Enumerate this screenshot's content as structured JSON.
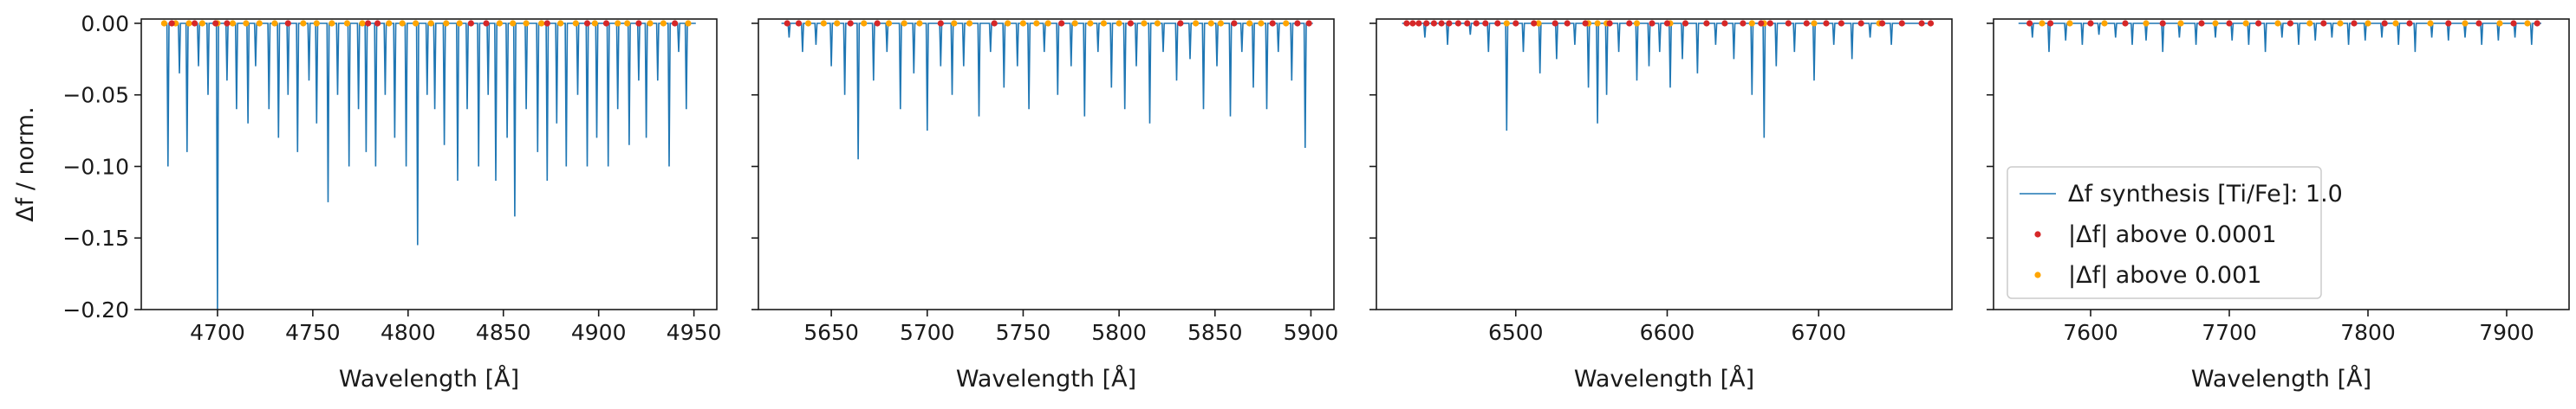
{
  "figure": {
    "ylabel": "Δf / norm.",
    "xlabel": "Wavelength [Å]",
    "ylim": [
      -0.2,
      0.003
    ],
    "yticks": [
      0.0,
      -0.05,
      -0.1,
      -0.15,
      -0.2
    ],
    "ytick_labels": [
      "0.00",
      "−0.05",
      "−0.10",
      "−0.15",
      "−0.20"
    ],
    "colors": {
      "synthesis": "#1f77b4",
      "above_1e-4": "#d62728",
      "above_1e-3": "#ffa500",
      "axes": "#1a1a1a"
    }
  },
  "legend": {
    "placement": "lower-left of fourth panel",
    "entries": [
      {
        "label": "Δf synthesis [Ti/Fe]: 1.0",
        "marker": "line",
        "color": "#1f77b4"
      },
      {
        "label": "|Δf| above 0.0001",
        "marker": "dot",
        "color": "#d62728"
      },
      {
        "label": "|Δf| above 0.001",
        "marker": "dot",
        "color": "#ffa500"
      }
    ]
  },
  "chart_data": [
    {
      "type": "line",
      "xlabel": "Wavelength [Å]",
      "ylabel": "Δf / norm.",
      "xlim": [
        4660,
        4962
      ],
      "ylim": [
        -0.2,
        0.003
      ],
      "xticks": [
        4700,
        4750,
        4800,
        4850,
        4900,
        4950
      ],
      "series": [
        {
          "name": "Δf synthesis [Ti/Fe]: 1.0",
          "range": [
            4672,
            4951
          ],
          "dips": [
            [
              4674,
              -0.1
            ],
            [
              4680,
              -0.035
            ],
            [
              4684,
              -0.09
            ],
            [
              4690,
              -0.03
            ],
            [
              4695,
              -0.05
            ],
            [
              4700,
              -0.2
            ],
            [
              4705,
              -0.04
            ],
            [
              4710,
              -0.06
            ],
            [
              4716,
              -0.07
            ],
            [
              4720,
              -0.03
            ],
            [
              4727,
              -0.06
            ],
            [
              4732,
              -0.08
            ],
            [
              4737,
              -0.05
            ],
            [
              4742,
              -0.09
            ],
            [
              4748,
              -0.04
            ],
            [
              4752,
              -0.07
            ],
            [
              4758,
              -0.125
            ],
            [
              4763,
              -0.05
            ],
            [
              4769,
              -0.1
            ],
            [
              4774,
              -0.06
            ],
            [
              4778,
              -0.09
            ],
            [
              4783,
              -0.1
            ],
            [
              4788,
              -0.05
            ],
            [
              4793,
              -0.08
            ],
            [
              4799,
              -0.1
            ],
            [
              4805,
              -0.155
            ],
            [
              4810,
              -0.05
            ],
            [
              4814,
              -0.06
            ],
            [
              4819,
              -0.085
            ],
            [
              4826,
              -0.11
            ],
            [
              4831,
              -0.06
            ],
            [
              4837,
              -0.1
            ],
            [
              4842,
              -0.05
            ],
            [
              4846,
              -0.11
            ],
            [
              4852,
              -0.08
            ],
            [
              4856,
              -0.135
            ],
            [
              4862,
              -0.06
            ],
            [
              4868,
              -0.09
            ],
            [
              4873,
              -0.11
            ],
            [
              4878,
              -0.07
            ],
            [
              4883,
              -0.1
            ],
            [
              4889,
              -0.05
            ],
            [
              4894,
              -0.1
            ],
            [
              4899,
              -0.08
            ],
            [
              4905,
              -0.1
            ],
            [
              4910,
              -0.06
            ],
            [
              4916,
              -0.085
            ],
            [
              4921,
              -0.04
            ],
            [
              4925,
              -0.08
            ],
            [
              4931,
              -0.04
            ],
            [
              4937,
              -0.1
            ],
            [
              4942,
              -0.02
            ],
            [
              4946,
              -0.06
            ]
          ]
        },
        {
          "name": "|Δf| above 0.0001",
          "marker": "dot",
          "x": [
            4676,
            4688,
            4699,
            4705,
            4737,
            4779,
            4784,
            4833,
            4841,
            4873,
            4894,
            4904,
            4921,
            4940
          ]
        },
        {
          "name": "|Δf| above 0.001",
          "marker": "dot",
          "x": [
            4672,
            4678,
            4685,
            4692,
            4700,
            4708,
            4715,
            4722,
            4730,
            4745,
            4752,
            4760,
            4768,
            4776,
            4790,
            4797,
            4804,
            4812,
            4820,
            4827,
            4848,
            4855,
            4862,
            4870,
            4880,
            4888,
            4898,
            4910,
            4915,
            4927,
            4934,
            4947
          ]
        }
      ]
    },
    {
      "type": "line",
      "xlabel": "Wavelength [Å]",
      "xlim": [
        5612,
        5912
      ],
      "ylim": [
        -0.2,
        0.003
      ],
      "xticks": [
        5650,
        5700,
        5750,
        5800,
        5850,
        5900
      ],
      "series": [
        {
          "name": "Δf synthesis [Ti/Fe]: 1.0",
          "range": [
            5624,
            5901
          ],
          "dips": [
            [
              5628,
              -0.01
            ],
            [
              5635,
              -0.02
            ],
            [
              5642,
              -0.015
            ],
            [
              5650,
              -0.03
            ],
            [
              5657,
              -0.05
            ],
            [
              5664,
              -0.095
            ],
            [
              5672,
              -0.04
            ],
            [
              5679,
              -0.02
            ],
            [
              5686,
              -0.06
            ],
            [
              5693,
              -0.035
            ],
            [
              5700,
              -0.075
            ],
            [
              5707,
              -0.03
            ],
            [
              5713,
              -0.05
            ],
            [
              5719,
              -0.03
            ],
            [
              5727,
              -0.065
            ],
            [
              5733,
              -0.02
            ],
            [
              5740,
              -0.045
            ],
            [
              5747,
              -0.03
            ],
            [
              5753,
              -0.06
            ],
            [
              5761,
              -0.02
            ],
            [
              5768,
              -0.05
            ],
            [
              5775,
              -0.03
            ],
            [
              5782,
              -0.065
            ],
            [
              5789,
              -0.02
            ],
            [
              5796,
              -0.045
            ],
            [
              5803,
              -0.06
            ],
            [
              5809,
              -0.03
            ],
            [
              5816,
              -0.07
            ],
            [
              5823,
              -0.02
            ],
            [
              5830,
              -0.04
            ],
            [
              5837,
              -0.025
            ],
            [
              5844,
              -0.06
            ],
            [
              5851,
              -0.03
            ],
            [
              5858,
              -0.065
            ],
            [
              5864,
              -0.02
            ],
            [
              5870,
              -0.045
            ],
            [
              5877,
              -0.06
            ],
            [
              5883,
              -0.02
            ],
            [
              5890,
              -0.04
            ],
            [
              5897,
              -0.087
            ]
          ]
        },
        {
          "name": "|Δf| above 0.0001",
          "marker": "dot",
          "x": [
            5627,
            5633,
            5660,
            5674,
            5707,
            5735,
            5770,
            5806,
            5832,
            5860,
            5880,
            5893,
            5899
          ]
        },
        {
          "name": "|Δf| above 0.001",
          "marker": "dot",
          "x": [
            5638,
            5646,
            5653,
            5667,
            5680,
            5688,
            5696,
            5714,
            5722,
            5742,
            5750,
            5757,
            5763,
            5777,
            5785,
            5792,
            5800,
            5813,
            5820,
            5840,
            5848,
            5853,
            5868,
            5874,
            5887
          ]
        }
      ]
    },
    {
      "type": "line",
      "xlabel": "Wavelength [Å]",
      "xlim": [
        4400,
        6788
      ],
      "xlim_shown": [
        6408,
        6788
      ],
      "ylim": [
        -0.2,
        0.003
      ],
      "xticks": [
        6500,
        6600,
        6700
      ],
      "series": [
        {
          "name": "Δf synthesis [Ti/Fe]: 1.0",
          "range": [
            6425,
            6776
          ],
          "dips": [
            [
              6440,
              -0.01
            ],
            [
              6455,
              -0.015
            ],
            [
              6470,
              -0.008
            ],
            [
              6482,
              -0.02
            ],
            [
              6494,
              -0.075
            ],
            [
              6505,
              -0.02
            ],
            [
              6516,
              -0.035
            ],
            [
              6527,
              -0.025
            ],
            [
              6539,
              -0.015
            ],
            [
              6548,
              -0.045
            ],
            [
              6554,
              -0.07
            ],
            [
              6560,
              -0.05
            ],
            [
              6568,
              -0.02
            ],
            [
              6580,
              -0.04
            ],
            [
              6588,
              -0.03
            ],
            [
              6595,
              -0.02
            ],
            [
              6602,
              -0.045
            ],
            [
              6610,
              -0.025
            ],
            [
              6620,
              -0.035
            ],
            [
              6632,
              -0.015
            ],
            [
              6644,
              -0.025
            ],
            [
              6656,
              -0.05
            ],
            [
              6664,
              -0.08
            ],
            [
              6672,
              -0.03
            ],
            [
              6684,
              -0.02
            ],
            [
              6697,
              -0.04
            ],
            [
              6710,
              -0.015
            ],
            [
              6722,
              -0.025
            ],
            [
              6734,
              -0.01
            ],
            [
              6748,
              -0.015
            ]
          ]
        },
        {
          "name": "|Δf| above 0.0001",
          "marker": "dot",
          "x": [
            6428,
            6432,
            6436,
            6441,
            6446,
            6451,
            6456,
            6462,
            6468,
            6474,
            6480,
            6488,
            6500,
            6512,
            6526,
            6534,
            6546,
            6562,
            6575,
            6590,
            6600,
            6612,
            6626,
            6638,
            6650,
            6662,
            6668,
            6680,
            6692,
            6705,
            6715,
            6728,
            6742,
            6755,
            6768,
            6774
          ]
        },
        {
          "name": "|Δf| above 0.001",
          "marker": "dot",
          "x": [
            6494,
            6515,
            6548,
            6554,
            6560,
            6580,
            6602,
            6656,
            6664,
            6697,
            6740
          ]
        }
      ]
    },
    {
      "type": "line",
      "xlabel": "Wavelength [Å]",
      "xlim": [
        7530,
        7945
      ],
      "ylim": [
        -0.2,
        0.003
      ],
      "xticks": [
        7600,
        7700,
        7800,
        7900
      ],
      "series": [
        {
          "name": "Δf synthesis [Ti/Fe]: 1.0",
          "range": [
            7548,
            7925
          ],
          "dips": [
            [
              7558,
              -0.01
            ],
            [
              7570,
              -0.02
            ],
            [
              7582,
              -0.012
            ],
            [
              7594,
              -0.015
            ],
            [
              7606,
              -0.008
            ],
            [
              7618,
              -0.01
            ],
            [
              7630,
              -0.015
            ],
            [
              7640,
              -0.012
            ],
            [
              7652,
              -0.02
            ],
            [
              7664,
              -0.01
            ],
            [
              7676,
              -0.015
            ],
            [
              7690,
              -0.01
            ],
            [
              7702,
              -0.012
            ],
            [
              7714,
              -0.015
            ],
            [
              7726,
              -0.02
            ],
            [
              7738,
              -0.01
            ],
            [
              7750,
              -0.015
            ],
            [
              7762,
              -0.012
            ],
            [
              7774,
              -0.01
            ],
            [
              7786,
              -0.015
            ],
            [
              7798,
              -0.012
            ],
            [
              7810,
              -0.01
            ],
            [
              7822,
              -0.015
            ],
            [
              7834,
              -0.02
            ],
            [
              7846,
              -0.01
            ],
            [
              7858,
              -0.012
            ],
            [
              7870,
              -0.01
            ],
            [
              7882,
              -0.015
            ],
            [
              7894,
              -0.012
            ],
            [
              7906,
              -0.01
            ],
            [
              7918,
              -0.015
            ]
          ]
        },
        {
          "name": "|Δf| above 0.0001",
          "marker": "dot",
          "x": [
            7556,
            7571,
            7600,
            7625,
            7652,
            7680,
            7700,
            7721,
            7744,
            7768,
            7790,
            7812,
            7830,
            7858,
            7880,
            7905,
            7922
          ]
        },
        {
          "name": "|Δf| above 0.001",
          "marker": "dot",
          "x": [
            7565,
            7585,
            7610,
            7640,
            7665,
            7690,
            7712,
            7735,
            7758,
            7780,
            7800,
            7820,
            7845,
            7870,
            7895,
            7915
          ]
        }
      ]
    }
  ]
}
